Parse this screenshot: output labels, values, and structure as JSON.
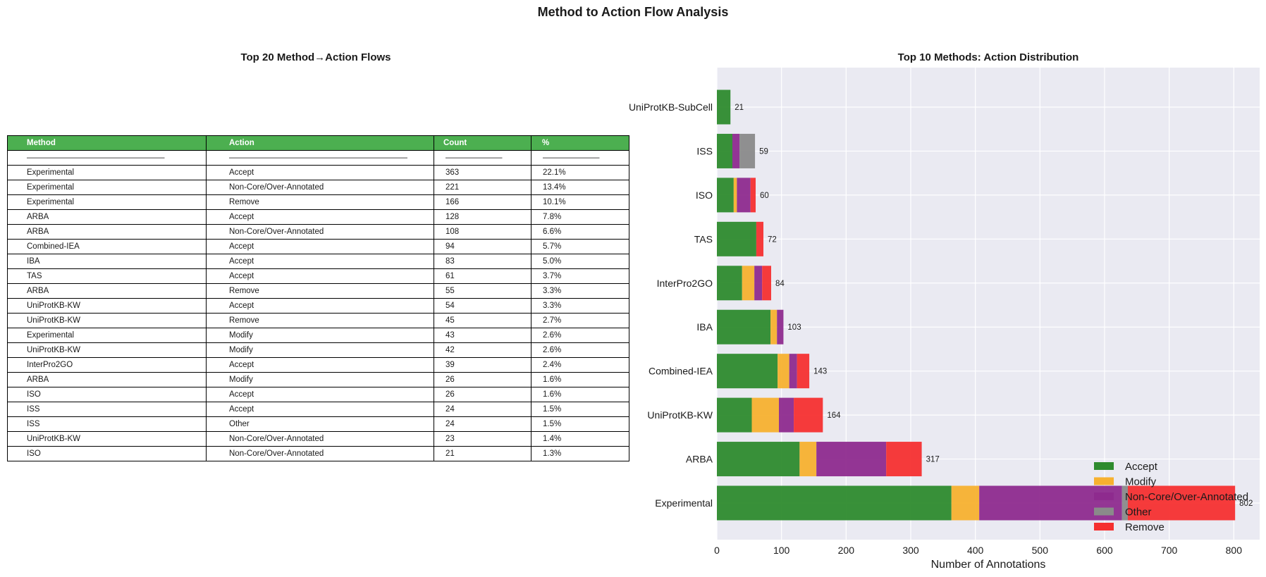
{
  "suptitle": "Method to Action Flow Analysis",
  "table": {
    "title": "Top 20 Method→Action Flows",
    "headers": [
      "Method",
      "Action",
      "Count",
      "%"
    ],
    "separator": [
      "—————————————————",
      "——————————————————————",
      "———————",
      "———————"
    ],
    "rows": [
      [
        "Experimental",
        "Accept",
        "363",
        "22.1%"
      ],
      [
        "Experimental",
        "Non-Core/Over-Annotated",
        "221",
        "13.4%"
      ],
      [
        "Experimental",
        "Remove",
        "166",
        "10.1%"
      ],
      [
        "ARBA",
        "Accept",
        "128",
        "7.8%"
      ],
      [
        "ARBA",
        "Non-Core/Over-Annotated",
        "108",
        "6.6%"
      ],
      [
        "Combined-IEA",
        "Accept",
        "94",
        "5.7%"
      ],
      [
        "IBA",
        "Accept",
        "83",
        "5.0%"
      ],
      [
        "TAS",
        "Accept",
        "61",
        "3.7%"
      ],
      [
        "ARBA",
        "Remove",
        "55",
        "3.3%"
      ],
      [
        "UniProtKB-KW",
        "Accept",
        "54",
        "3.3%"
      ],
      [
        "UniProtKB-KW",
        "Remove",
        "45",
        "2.7%"
      ],
      [
        "Experimental",
        "Modify",
        "43",
        "2.6%"
      ],
      [
        "UniProtKB-KW",
        "Modify",
        "42",
        "2.6%"
      ],
      [
        "InterPro2GO",
        "Accept",
        "39",
        "2.4%"
      ],
      [
        "ARBA",
        "Modify",
        "26",
        "1.6%"
      ],
      [
        "ISO",
        "Accept",
        "26",
        "1.6%"
      ],
      [
        "ISS",
        "Accept",
        "24",
        "1.5%"
      ],
      [
        "ISS",
        "Other",
        "24",
        "1.5%"
      ],
      [
        "UniProtKB-KW",
        "Non-Core/Over-Annotated",
        "23",
        "1.4%"
      ],
      [
        "ISO",
        "Non-Core/Over-Annotated",
        "21",
        "1.3%"
      ]
    ]
  },
  "chart_data": {
    "type": "bar",
    "orientation": "horizontal",
    "stacked": true,
    "title": "Top 10 Methods: Action Distribution",
    "xlabel": "Number of Annotations",
    "ylabel": "",
    "xlim": [
      0,
      840
    ],
    "xticks": [
      0,
      100,
      200,
      300,
      400,
      500,
      600,
      700,
      800
    ],
    "grid": true,
    "legend_position": "lower-right",
    "categories": [
      "Experimental",
      "ARBA",
      "UniProtKB-KW",
      "Combined-IEA",
      "IBA",
      "InterPro2GO",
      "TAS",
      "ISO",
      "ISS",
      "UniProtKB-SubCell"
    ],
    "totals": [
      802,
      317,
      164,
      143,
      103,
      84,
      72,
      60,
      59,
      21
    ],
    "series": [
      {
        "name": "Accept",
        "color": "#2e8b2e",
        "values": [
          363,
          128,
          54,
          94,
          83,
          39,
          61,
          26,
          24,
          21
        ]
      },
      {
        "name": "Modify",
        "color": "#f7b12f",
        "values": [
          43,
          26,
          42,
          18,
          10,
          19,
          0,
          5,
          0,
          0
        ]
      },
      {
        "name": "Non-Core/Over-Annotated",
        "color": "#8e2b8e",
        "values": [
          221,
          108,
          23,
          12,
          10,
          12,
          0,
          21,
          11,
          0
        ]
      },
      {
        "name": "Other",
        "color": "#8a8a8a",
        "values": [
          9,
          0,
          0,
          0,
          0,
          0,
          0,
          0,
          24,
          0
        ]
      },
      {
        "name": "Remove",
        "color": "#f53030",
        "values": [
          166,
          55,
          45,
          19,
          0,
          14,
          11,
          8,
          0,
          0
        ]
      }
    ]
  }
}
